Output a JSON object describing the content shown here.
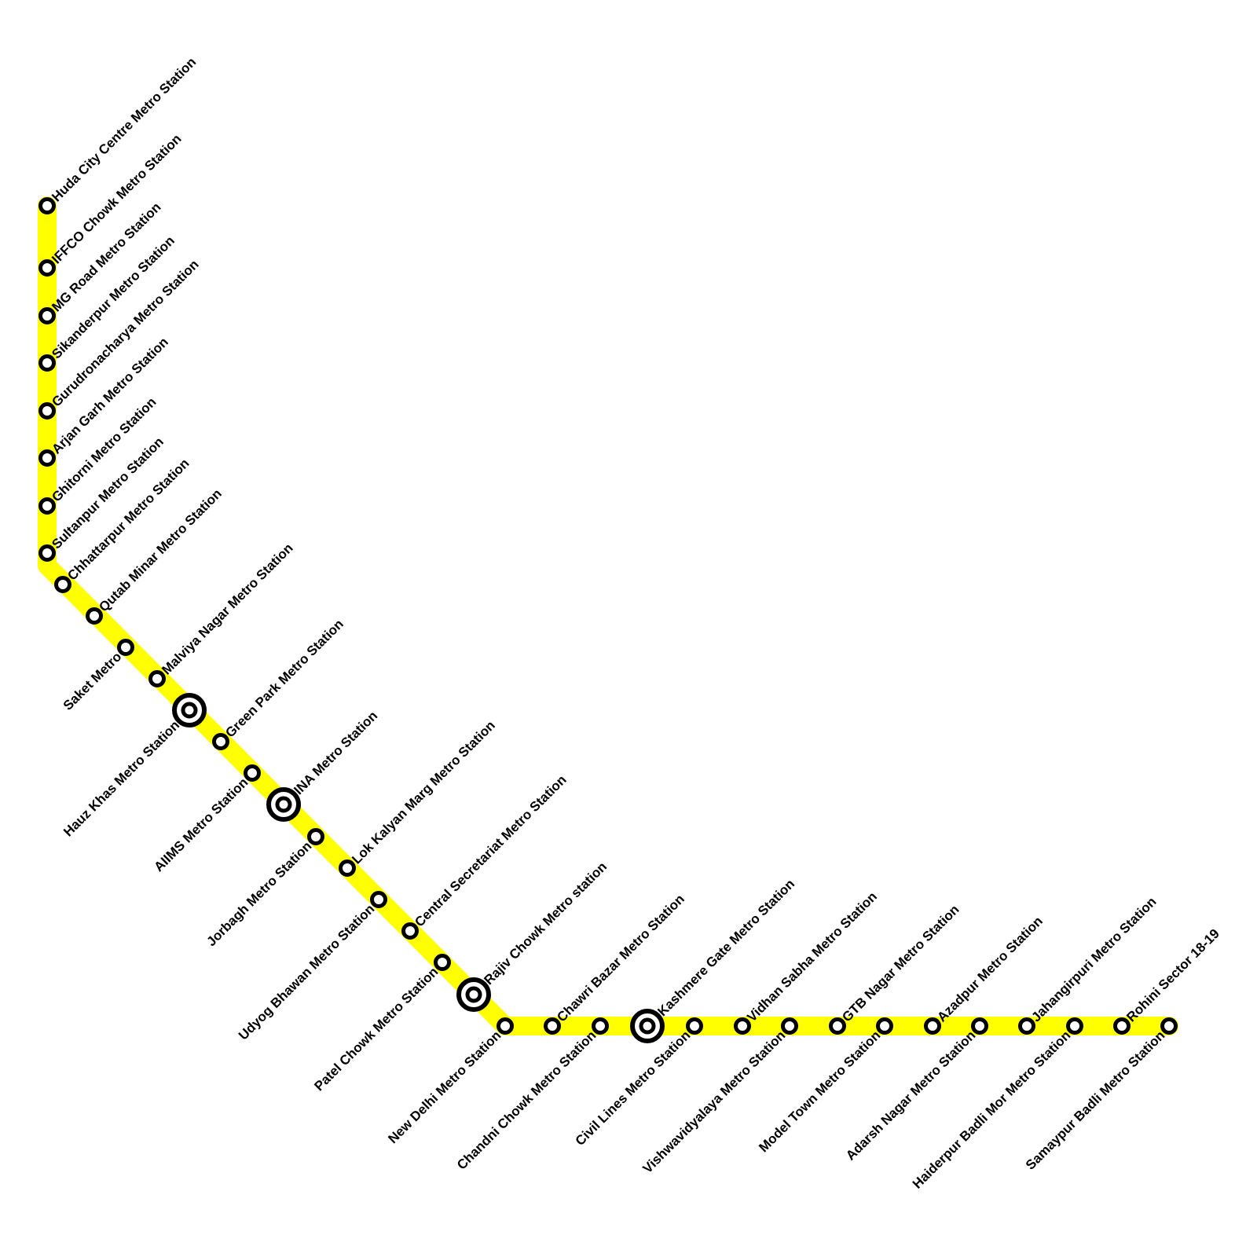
{
  "line": {
    "color": "#ffff00",
    "marker_stroke": "#000000",
    "marker_fill": "#ffffff"
  },
  "stations": [
    {
      "name": "Huda City Centre Metro Station",
      "interchange": false
    },
    {
      "name": "IFFCO Chowk Metro Station",
      "interchange": false
    },
    {
      "name": "MG Road Metro Station",
      "interchange": false
    },
    {
      "name": "Sikanderpur Metro Station",
      "interchange": false
    },
    {
      "name": "Gurudronacharya Metro Station",
      "interchange": false
    },
    {
      "name": "Arjan Garh Metro Station",
      "interchange": false
    },
    {
      "name": "Ghitorni Metro Station",
      "interchange": false
    },
    {
      "name": "Sultanpur Metro Station",
      "interchange": false
    },
    {
      "name": "Chhattarpur Metro Station",
      "interchange": false
    },
    {
      "name": "Qutab Minar Metro Station",
      "interchange": false
    },
    {
      "name": "Saket Metro",
      "interchange": false
    },
    {
      "name": "Malviya Nagar Metro Station",
      "interchange": false
    },
    {
      "name": "Hauz Khas Metro Station",
      "interchange": true
    },
    {
      "name": "Green Park Metro Station",
      "interchange": false
    },
    {
      "name": "AIIMS Metro Station",
      "interchange": false
    },
    {
      "name": "INA Metro Station",
      "interchange": true
    },
    {
      "name": "Jorbagh Metro Station",
      "interchange": false
    },
    {
      "name": "Lok Kalyan Marg Metro Station",
      "interchange": false
    },
    {
      "name": "Udyog Bhawan Metro Station",
      "interchange": false
    },
    {
      "name": "Central Secretariat Metro Station",
      "interchange": false
    },
    {
      "name": "Patel Chowk Metro Station",
      "interchange": false
    },
    {
      "name": "Rajiv Chowk Metro station",
      "interchange": true
    },
    {
      "name": "New Delhi Metro Station",
      "interchange": false
    },
    {
      "name": "Chawri Bazar Metro Station",
      "interchange": false
    },
    {
      "name": "Chandni Chowk Metro Station",
      "interchange": false
    },
    {
      "name": "Kashmere Gate Metro Station",
      "interchange": true
    },
    {
      "name": "Civil Lines Metro Station",
      "interchange": false
    },
    {
      "name": "Vidhan Sabha Metro Station",
      "interchange": false
    },
    {
      "name": "Vishwavidyalaya Metro Station",
      "interchange": false
    },
    {
      "name": "GTB Nagar Metro Station",
      "interchange": false
    },
    {
      "name": "Model Town Metro Station",
      "interchange": false
    },
    {
      "name": "Azadpur Metro Station",
      "interchange": false
    },
    {
      "name": "Adarsh Nagar Metro Station",
      "interchange": false
    },
    {
      "name": "Jahangirpuri Metro Station",
      "interchange": false
    },
    {
      "name": "Haiderpur Badli Mor Metro Station",
      "interchange": false
    },
    {
      "name": "Rohini Sector 18-19",
      "interchange": false
    },
    {
      "name": "Samaypur Badli Metro Station",
      "interchange": false
    }
  ]
}
